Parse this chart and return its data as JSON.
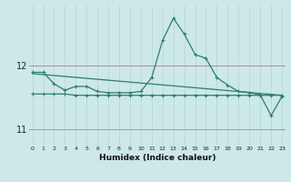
{
  "x": [
    0,
    1,
    2,
    3,
    4,
    5,
    6,
    7,
    8,
    9,
    10,
    11,
    12,
    13,
    14,
    15,
    16,
    17,
    18,
    19,
    20,
    21,
    22,
    23
  ],
  "line_main": [
    11.9,
    11.9,
    11.72,
    11.62,
    11.68,
    11.68,
    11.6,
    11.58,
    11.58,
    11.58,
    11.6,
    11.82,
    12.4,
    12.75,
    12.5,
    12.18,
    12.12,
    11.82,
    11.7,
    11.6,
    11.58,
    11.55,
    11.22,
    11.52
  ],
  "line_flat": [
    11.56,
    11.56,
    11.56,
    11.56,
    11.54,
    11.54,
    11.54,
    11.54,
    11.54,
    11.54,
    11.54,
    11.54,
    11.54,
    11.54,
    11.54,
    11.54,
    11.54,
    11.54,
    11.54,
    11.54,
    11.54,
    11.54,
    11.54,
    11.54
  ],
  "line_trend_x": [
    0,
    23
  ],
  "line_trend_y": [
    11.88,
    11.54
  ],
  "ytick_positions": [
    11,
    12
  ],
  "ytick_labels": [
    "11",
    "12"
  ],
  "xticks": [
    0,
    1,
    2,
    3,
    4,
    5,
    6,
    7,
    8,
    9,
    10,
    11,
    12,
    13,
    14,
    15,
    16,
    17,
    18,
    19,
    20,
    21,
    22,
    23
  ],
  "xlabel": "Humidex (Indice chaleur)",
  "ylim": [
    10.75,
    12.95
  ],
  "xlim": [
    -0.3,
    23.3
  ],
  "line_color": "#2e7d6d",
  "bg_color": "#cce8e8",
  "grid_color_h": "#c08888",
  "grid_color_v": "#b8d8d8"
}
